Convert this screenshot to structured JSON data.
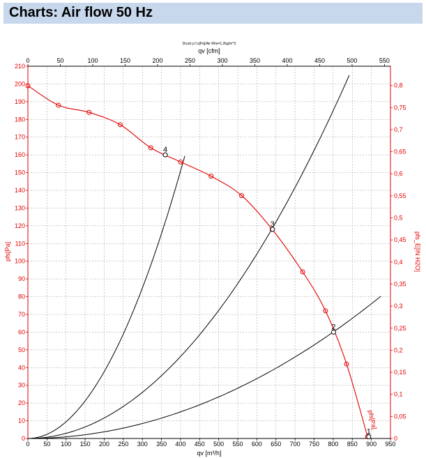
{
  "header": {
    "title": "Charts: Air flow 50 Hz"
  },
  "colors": {
    "header_bg": "#c7d8ec",
    "fan_curve": "#e00000",
    "system_curve": "#000000",
    "grid": "#999999"
  },
  "chart_data": {
    "type": "line",
    "subtitle": "Druck p f.x[Pa]/Air Rho=1,2kg/m^3",
    "x_bottom": {
      "label": "qv [m³/h]",
      "range": [
        0,
        950
      ],
      "ticks": [
        0,
        50,
        100,
        150,
        200,
        250,
        300,
        350,
        400,
        450,
        500,
        550,
        600,
        650,
        700,
        750,
        800,
        850,
        900,
        950
      ]
    },
    "x_top": {
      "label": "qv [cfm]",
      "range": [
        0,
        559.2
      ],
      "ticks": [
        0,
        50,
        100,
        150,
        200,
        250,
        300,
        350,
        400,
        450,
        500,
        550
      ]
    },
    "y_left": {
      "label": "pfs[Pa]",
      "range": [
        0,
        210
      ],
      "ticks": [
        0,
        10,
        20,
        30,
        40,
        50,
        60,
        70,
        80,
        90,
        100,
        110,
        120,
        130,
        140,
        150,
        160,
        170,
        180,
        190,
        200,
        210
      ]
    },
    "y_right": {
      "label": "pfs_E[IN H2O]",
      "range": [
        0,
        0.8437
      ],
      "ticks": [
        "0",
        "0,05",
        "0,1",
        "0,15",
        "0,2",
        "0,25",
        "0,3",
        "0,35",
        "0,4",
        "0,45",
        "0,5",
        "0,55",
        "0,6",
        "0,65",
        "0,7",
        "0,75",
        "0,8"
      ],
      "tick_values": [
        0,
        0.05,
        0.1,
        0.15,
        0.2,
        0.25,
        0.3,
        0.35,
        0.4,
        0.45,
        0.5,
        0.55,
        0.6,
        0.65,
        0.7,
        0.75,
        0.8
      ]
    },
    "grid": true,
    "fan_curve": {
      "name": "pfs[Pa]",
      "x": [
        0,
        80,
        160,
        242,
        322,
        400,
        480,
        560,
        640,
        720,
        780,
        835,
        890
      ],
      "y": [
        199,
        188,
        184,
        177,
        164,
        156,
        148,
        137,
        118,
        94,
        72,
        42,
        1
      ]
    },
    "system_curves": [
      {
        "k": 0.000943,
        "x_max": 411
      },
      {
        "k": 0.000289,
        "x_max": 842
      },
      {
        "k": 9.38e-05,
        "x_max": 925
      }
    ],
    "operating_points": [
      {
        "label": "4",
        "x": 360,
        "y": 160
      },
      {
        "label": "3",
        "x": 641,
        "y": 118
      },
      {
        "label": "2",
        "x": 801,
        "y": 60
      },
      {
        "label": "1",
        "x": 893,
        "y": 1
      }
    ]
  }
}
